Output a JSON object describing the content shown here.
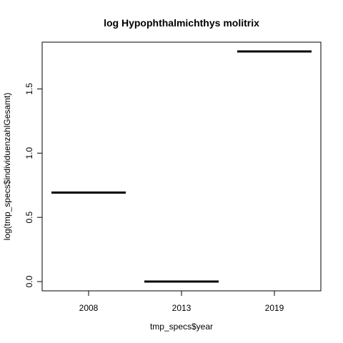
{
  "chart_data": {
    "type": "bar",
    "title": "log Hypophthalmichthys molitrix",
    "xlabel": "tmp_specs$year",
    "ylabel": "log(tmp_specs$individuenzahlGesamt)",
    "categories": [
      "2008",
      "2013",
      "2019"
    ],
    "values": [
      0.693,
      0.0,
      1.792
    ],
    "ylim": [
      -0.072,
      1.864
    ],
    "yticks": [
      0.0,
      0.5,
      1.0,
      1.5
    ],
    "ytick_labels": [
      "0.0",
      "0.5",
      "1.0",
      "1.5"
    ],
    "grid": false,
    "legend": "none"
  }
}
